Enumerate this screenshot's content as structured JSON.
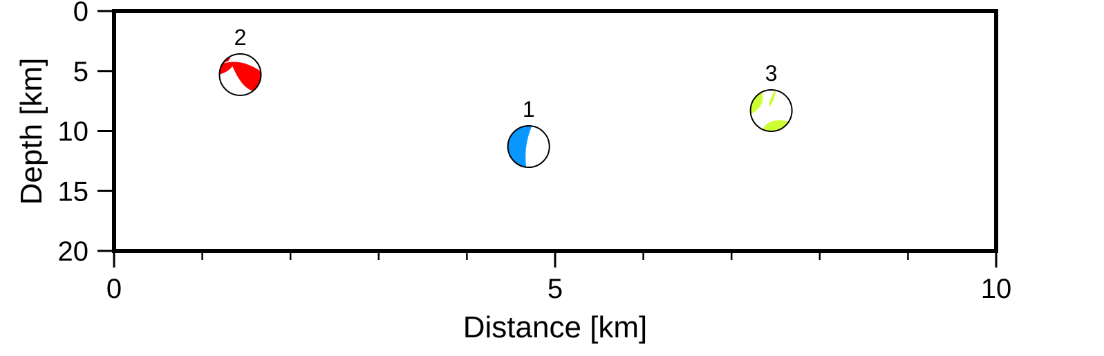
{
  "chart_data": {
    "type": "scatter",
    "xlabel": "Distance [km]",
    "ylabel": "Depth [km]",
    "xlim": [
      0,
      10
    ],
    "ylim": [
      0,
      20
    ],
    "y_inverted": true,
    "grid": false,
    "x_ticks": [
      {
        "value": 0,
        "label": "0"
      },
      {
        "value": 5,
        "label": "5"
      },
      {
        "value": 10,
        "label": "10"
      }
    ],
    "x_minor_ticks": [
      1,
      2,
      3,
      4,
      6,
      7,
      8,
      9
    ],
    "y_ticks": [
      {
        "value": 0,
        "label": "0"
      },
      {
        "value": 5,
        "label": "5"
      },
      {
        "value": 10,
        "label": "10"
      },
      {
        "value": 15,
        "label": "15"
      },
      {
        "value": 20,
        "label": "20"
      }
    ],
    "events": [
      {
        "label": "1",
        "x": 4.7,
        "y": 11.3,
        "color": "#0a96ff",
        "mechanism": "blue-west-wedge"
      },
      {
        "label": "2",
        "x": 1.43,
        "y": 5.3,
        "color": "#ff0000",
        "mechanism": "red-thrust"
      },
      {
        "label": "3",
        "x": 7.45,
        "y": 8.3,
        "color": "#ccff33",
        "mechanism": "green-strike-slip"
      }
    ]
  }
}
